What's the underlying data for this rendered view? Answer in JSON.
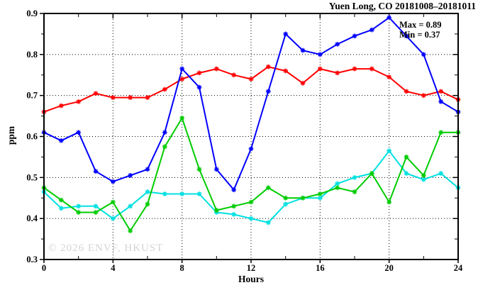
{
  "title": "Yuen Long, CO 20181008–20181011",
  "annotation": {
    "max_label": "Max = 0.89",
    "min_label": "Min = 0.37"
  },
  "watermark": "© 2026 ENVF, HKUST",
  "chart_data": {
    "type": "line",
    "title": "Yuen Long, CO 20181008–20181011",
    "xlabel": "Hours",
    "ylabel": "ppm",
    "xlim": [
      0,
      24
    ],
    "ylim": [
      0.3,
      0.9
    ],
    "grid": true,
    "x_major_ticks": [
      0,
      4,
      8,
      12,
      16,
      20,
      24
    ],
    "x_tick_labels": [
      "0",
      "4",
      "8",
      "12",
      "16",
      "20",
      "24"
    ],
    "x_minor_ticks": [
      2,
      6,
      10,
      14,
      18,
      22
    ],
    "y_major_ticks": [
      0.3,
      0.4,
      0.5,
      0.6,
      0.7,
      0.8,
      0.9
    ],
    "y_tick_labels": [
      "0.3",
      "0.4",
      "0.5",
      "0.6",
      "0.7",
      "0.8",
      "0.9"
    ],
    "y_minor_ticks": [
      0.35,
      0.45,
      0.55,
      0.65,
      0.75,
      0.85
    ],
    "x": [
      0,
      1,
      2,
      3,
      4,
      5,
      6,
      7,
      8,
      9,
      10,
      11,
      12,
      13,
      14,
      15,
      16,
      17,
      18,
      19,
      20,
      21,
      22,
      23,
      24
    ],
    "series": [
      {
        "name": "cyan",
        "color": "#00e0e0",
        "values": [
          0.465,
          0.425,
          0.43,
          0.43,
          0.4,
          0.43,
          0.465,
          0.46,
          0.46,
          0.46,
          0.415,
          0.41,
          0.4,
          0.39,
          0.435,
          0.45,
          0.45,
          0.485,
          0.5,
          0.51,
          0.565,
          0.51,
          0.495,
          0.51,
          0.475
        ]
      },
      {
        "name": "green",
        "color": "#00cc00",
        "values": [
          0.475,
          0.445,
          0.415,
          0.415,
          0.44,
          0.37,
          0.435,
          0.575,
          0.645,
          0.52,
          0.42,
          0.43,
          0.44,
          0.475,
          0.45,
          0.45,
          0.46,
          0.475,
          0.465,
          0.51,
          0.44,
          0.55,
          0.505,
          0.61,
          0.61
        ]
      },
      {
        "name": "red",
        "color": "#ff0000",
        "values": [
          0.66,
          0.675,
          0.685,
          0.705,
          0.695,
          0.695,
          0.695,
          0.715,
          0.74,
          0.755,
          0.765,
          0.75,
          0.74,
          0.77,
          0.76,
          0.73,
          0.765,
          0.755,
          0.765,
          0.765,
          0.745,
          0.71,
          0.7,
          0.71,
          0.69
        ]
      },
      {
        "name": "blue",
        "color": "#0000ff",
        "values": [
          0.61,
          0.59,
          0.61,
          0.515,
          0.49,
          0.505,
          0.52,
          0.61,
          0.765,
          0.72,
          0.52,
          0.47,
          0.57,
          0.71,
          0.85,
          0.81,
          0.8,
          0.825,
          0.845,
          0.86,
          0.89,
          0.845,
          0.8,
          0.685,
          0.66
        ]
      }
    ],
    "stats": {
      "max": 0.89,
      "min": 0.37
    }
  }
}
